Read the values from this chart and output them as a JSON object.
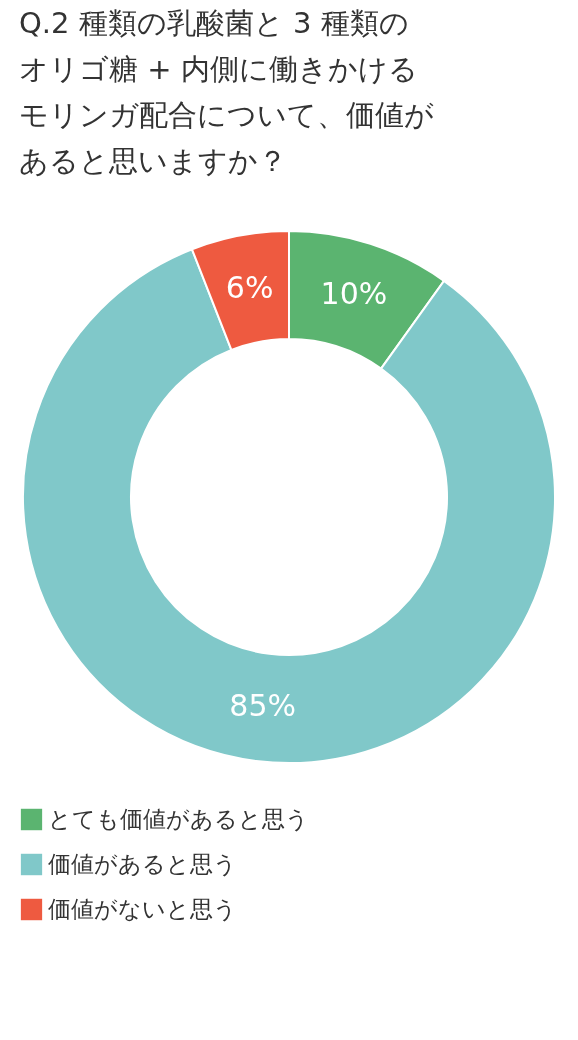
{
  "chart_data": {
    "type": "donut",
    "title": "Q.2 種類の乳酸菌と 3 種類のオリゴ糖 + 内側に働きかけるモリンガ配合について、価値があると思いますか？",
    "categories": [
      "とても価値があると思う",
      "価値があると思う",
      "価値がないと思う"
    ],
    "values": [
      10,
      85,
      6
    ],
    "colors": [
      "#5bb470",
      "#80c8c9",
      "#ee5a40"
    ],
    "value_labels": [
      "10%",
      "85%",
      "6%"
    ],
    "legend": "bottom"
  }
}
